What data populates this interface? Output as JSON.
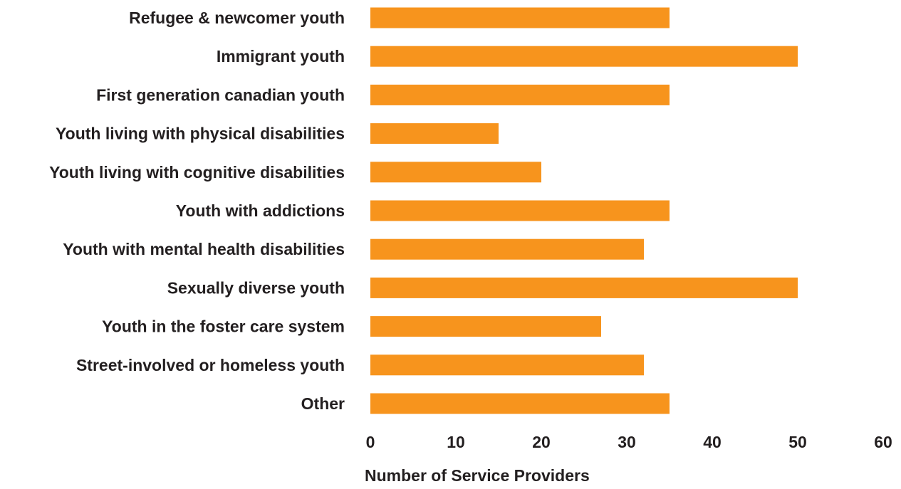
{
  "chart_data": {
    "type": "bar",
    "orientation": "horizontal",
    "categories": [
      "Refugee & newcomer youth",
      "Immigrant youth",
      "First generation canadian youth",
      "Youth living with physical disabilities",
      "Youth living with cognitive disabilities",
      "Youth with addictions",
      "Youth with mental health disabilities",
      "Sexually diverse youth",
      "Youth in the foster care system",
      "Street-involved or homeless youth",
      "Other"
    ],
    "values": [
      35,
      50,
      35,
      15,
      20,
      35,
      32,
      50,
      27,
      32,
      35
    ],
    "xlabel": "Number of Service Providers",
    "ylabel": "",
    "xlim": [
      0,
      60
    ],
    "xticks": [
      "0",
      "10",
      "20",
      "30",
      "40",
      "50",
      "60"
    ],
    "grid": false,
    "legend": "none",
    "bar_color": "#f7941d"
  }
}
